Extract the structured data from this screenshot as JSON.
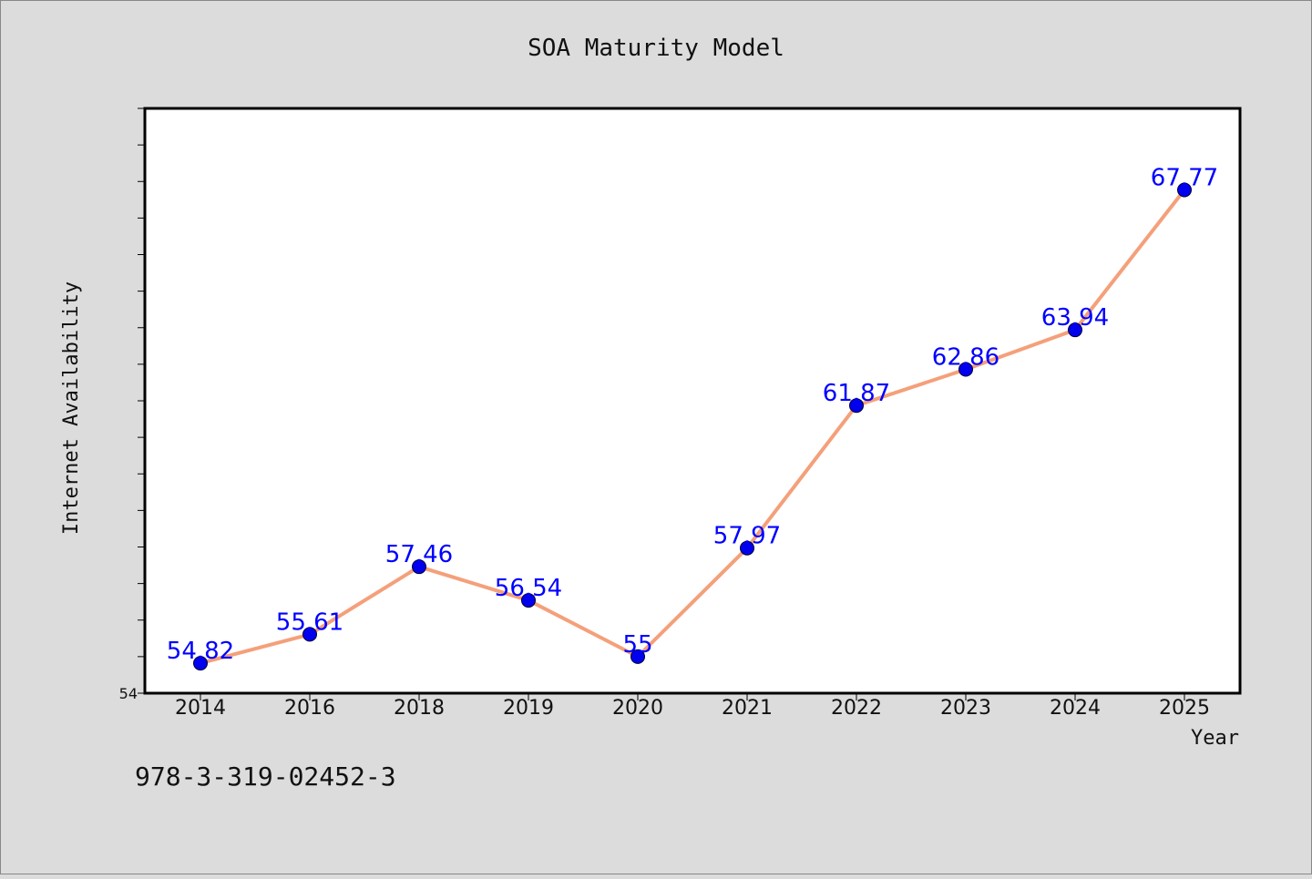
{
  "chart_data": {
    "type": "line",
    "title": "SOA Maturity Model",
    "xlabel": "Year",
    "ylabel": "Internet Availability",
    "categories": [
      "2014",
      "2016",
      "2018",
      "2019",
      "2020",
      "2021",
      "2022",
      "2023",
      "2024",
      "2025"
    ],
    "series": [
      {
        "values": [
          54.82,
          55.61,
          57.46,
          56.54,
          55,
          57.97,
          61.87,
          62.86,
          63.94,
          67.77
        ],
        "data_labels": [
          "54.82",
          "55.61",
          "57.46",
          "56.54",
          "55",
          "57.97",
          "61.87",
          "62.86",
          "63.94",
          "67.77"
        ]
      }
    ],
    "ylim": [
      54,
      70
    ],
    "y_tick_labels_visible": [
      "54"
    ],
    "grid": false,
    "line_color": "#f4a07a",
    "marker_color": "#0000ee",
    "label_color": "#0000ff",
    "plot_background": "#ffffff",
    "figure_background": "#dcdcdc"
  },
  "footer": {
    "text": "978-3-319-02452-3"
  }
}
